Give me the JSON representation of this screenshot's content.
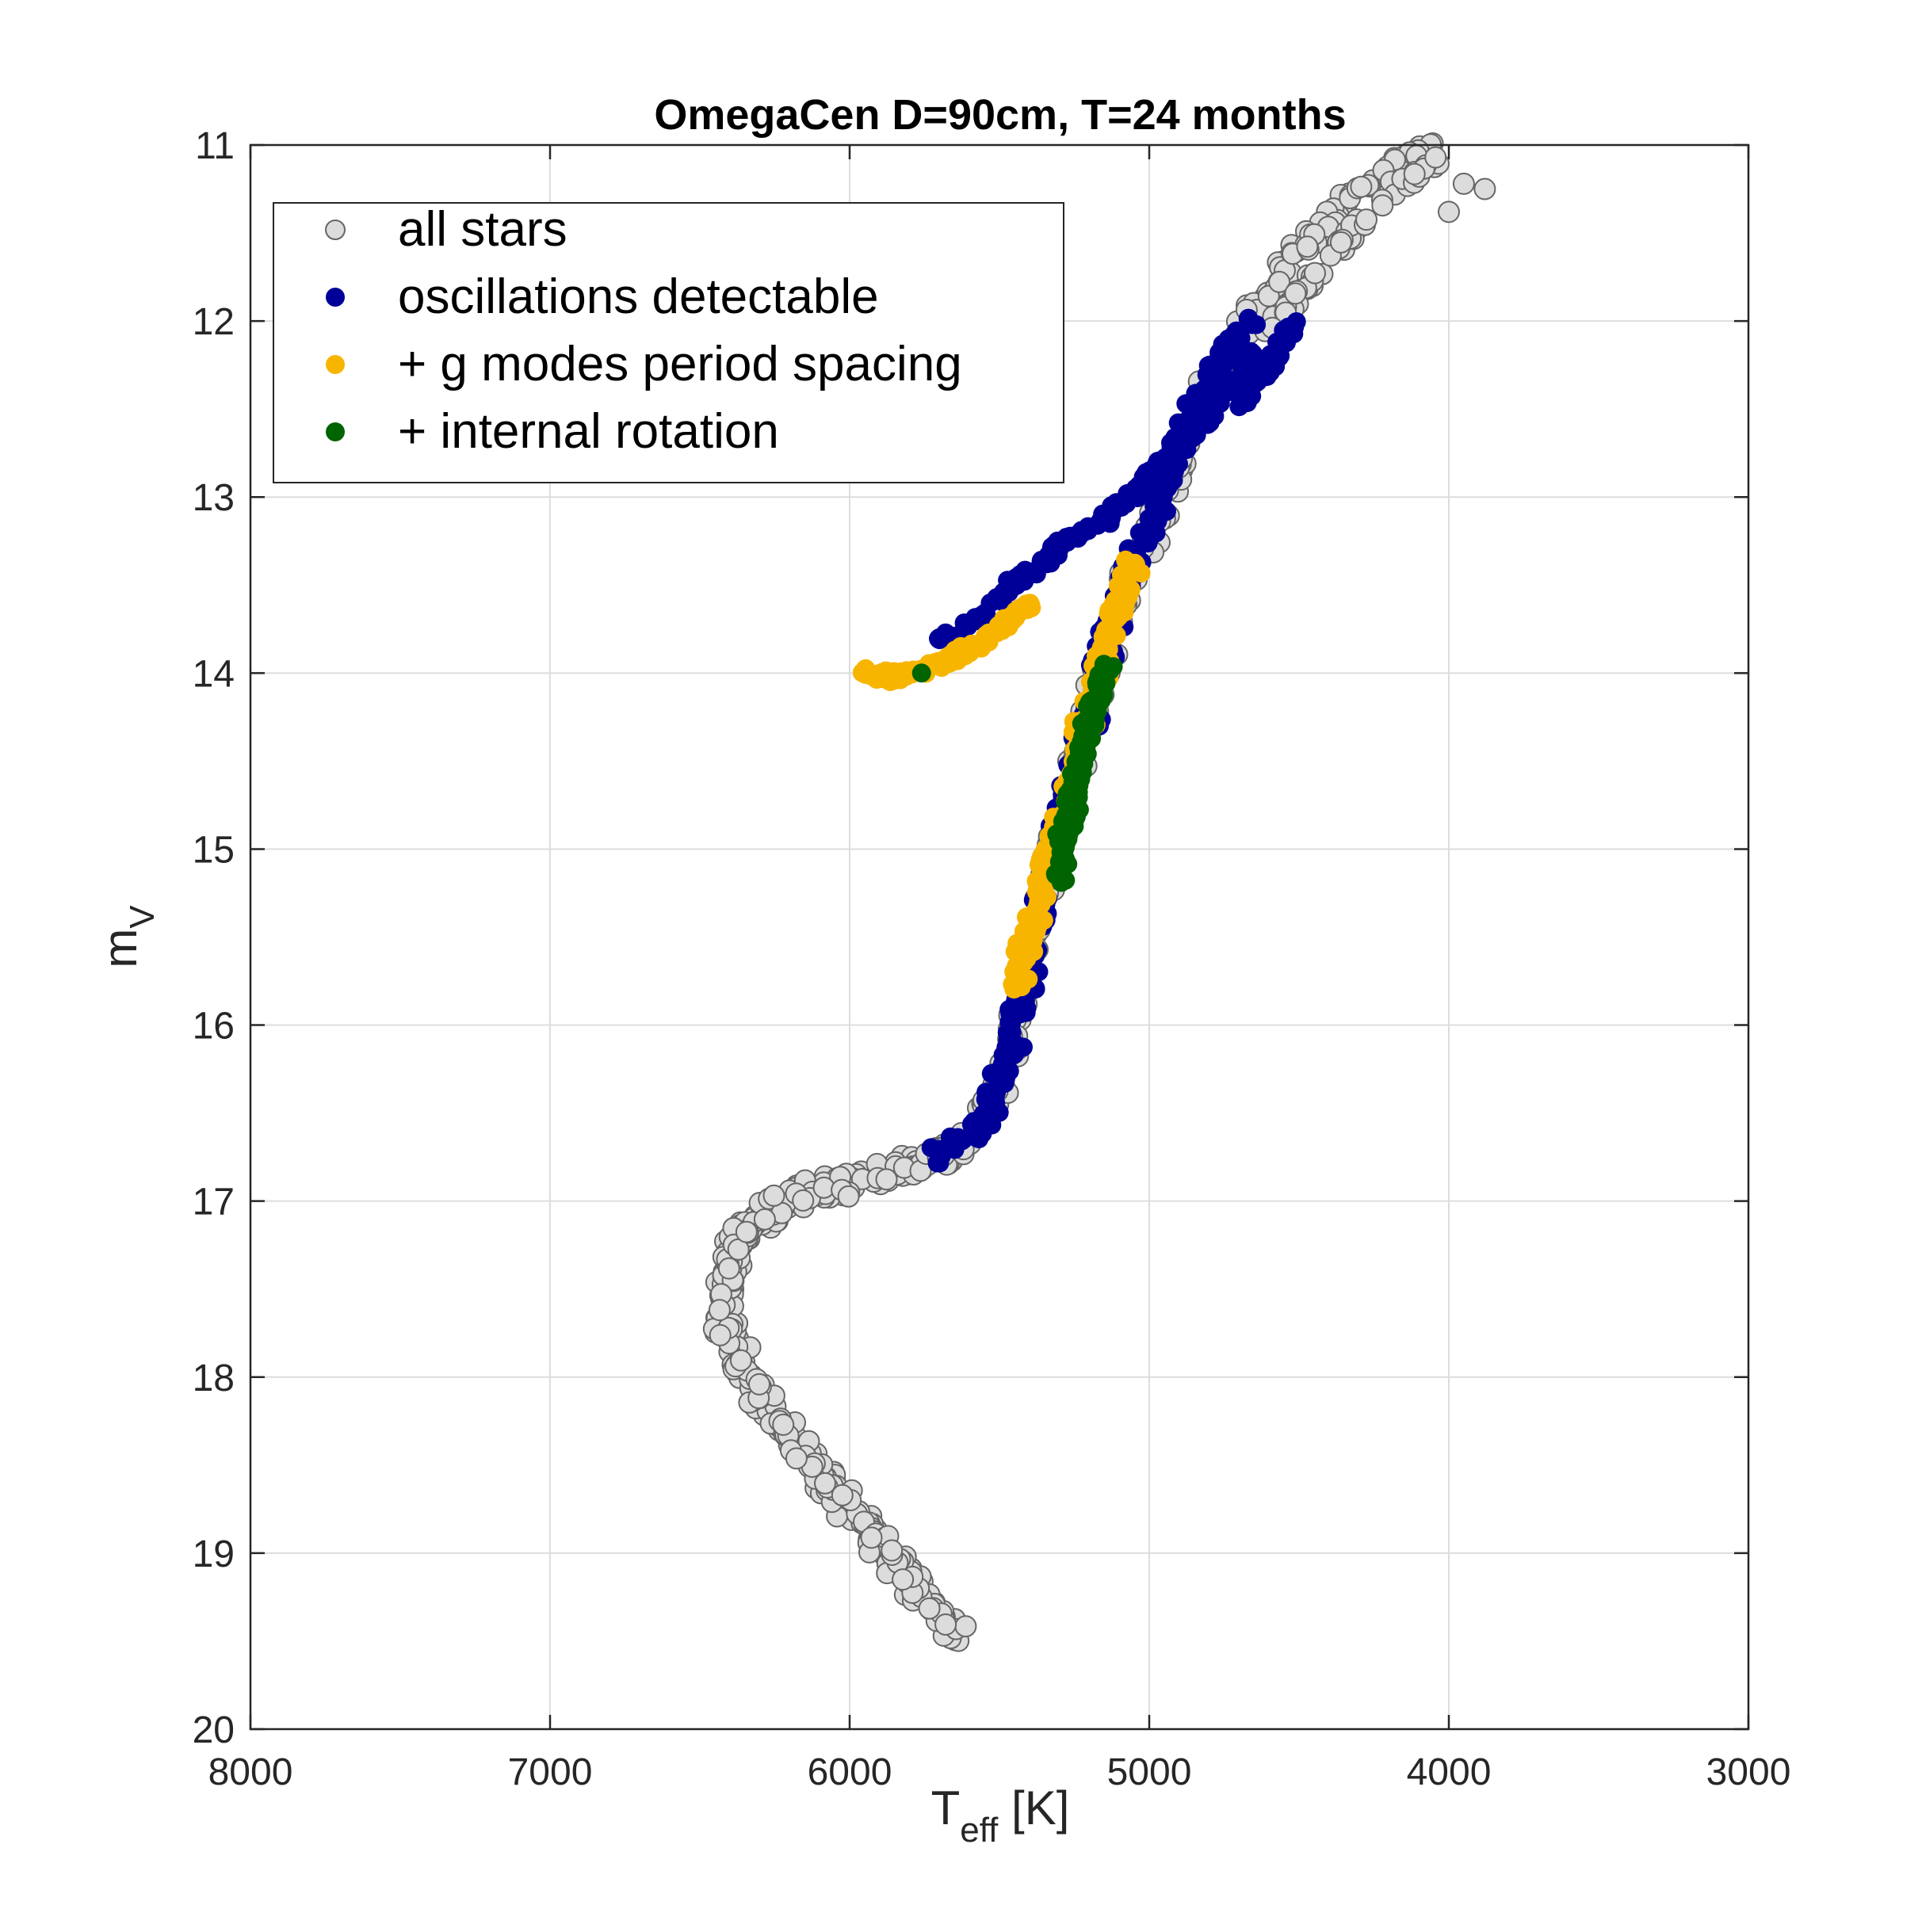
{
  "chart_data": {
    "type": "scatter",
    "title": "OmegaCen   D=90cm, T=24 months",
    "xlabel": "T",
    "xlabel_sub": "eff",
    "xlabel_unit": " [K]",
    "ylabel": "m",
    "ylabel_sub": "V",
    "xlim": [
      8000,
      3000
    ],
    "ylim": [
      11,
      20
    ],
    "x_reversed": true,
    "y_reversed": true,
    "xticks": [
      8000,
      7000,
      6000,
      5000,
      4000,
      3000
    ],
    "yticks": [
      11,
      12,
      13,
      14,
      15,
      16,
      17,
      18,
      19,
      20
    ],
    "grid": true,
    "legend_placement": "top-left",
    "series": [
      {
        "name": "all stars",
        "color": "#dcdcdc",
        "edge": "#666666",
        "marker": "open-circle",
        "bands": [
          {
            "path": [
              [
                5620,
                19.48
              ],
              [
                5700,
                19.35
              ],
              [
                5800,
                19.15
              ],
              [
                5900,
                18.95
              ],
              [
                6000,
                18.75
              ],
              [
                6100,
                18.55
              ],
              [
                6200,
                18.33
              ],
              [
                6300,
                18.1
              ],
              [
                6380,
                17.85
              ],
              [
                6420,
                17.6
              ],
              [
                6410,
                17.38
              ],
              [
                6370,
                17.22
              ],
              [
                6300,
                17.1
              ],
              [
                6200,
                17.0
              ],
              [
                6100,
                16.94
              ],
              [
                6000,
                16.89
              ],
              [
                5900,
                16.86
              ],
              [
                5800,
                16.81
              ],
              [
                5700,
                16.74
              ],
              [
                5620,
                16.68
              ]
            ],
            "width": 45,
            "n": 440
          },
          {
            "path": [
              [
                5720,
                16.75
              ],
              [
                5600,
                16.62
              ],
              [
                5520,
                16.42
              ],
              [
                5460,
                16.1
              ],
              [
                5420,
                15.8
              ],
              [
                5380,
                15.4
              ],
              [
                5320,
                15.0
              ],
              [
                5260,
                14.6
              ],
              [
                5200,
                14.2
              ],
              [
                5140,
                13.8
              ],
              [
                5060,
                13.45
              ],
              [
                4970,
                13.1
              ],
              [
                4900,
                12.8
              ],
              [
                4840,
                12.5
              ],
              [
                4760,
                12.2
              ],
              [
                4680,
                12.0
              ],
              [
                4600,
                11.8
              ],
              [
                4480,
                11.55
              ],
              [
                4380,
                11.4
              ],
              [
                4250,
                11.2
              ],
              [
                4120,
                11.05
              ],
              [
                4010,
                11.0
              ]
            ],
            "width": 40,
            "n": 300
          },
          {
            "path": [
              [
                4620,
                12.1
              ],
              [
                4500,
                11.85
              ],
              [
                4400,
                11.65
              ],
              [
                4300,
                11.45
              ],
              [
                4200,
                11.3
              ],
              [
                4100,
                11.15
              ],
              [
                4000,
                11.05
              ]
            ],
            "width": 25,
            "n": 60
          }
        ],
        "scatter_points": [
          [
            4000,
            11.38
          ],
          [
            3950,
            11.22
          ],
          [
            3880,
            11.25
          ]
        ]
      },
      {
        "name": "oscillations detectable",
        "color": "#000099",
        "marker": "filled-circle",
        "bands": [
          {
            "path": [
              [
                5720,
                16.75
              ],
              [
                5600,
                16.65
              ],
              [
                5520,
                16.45
              ],
              [
                5470,
                16.2
              ],
              [
                5440,
                15.95
              ],
              [
                5410,
                15.7
              ],
              [
                5370,
                15.4
              ],
              [
                5320,
                15.0
              ],
              [
                5260,
                14.6
              ],
              [
                5200,
                14.2
              ],
              [
                5140,
                13.8
              ],
              [
                5070,
                13.45
              ],
              [
                4990,
                13.15
              ],
              [
                4930,
                12.85
              ],
              [
                4870,
                12.6
              ],
              [
                4800,
                12.35
              ],
              [
                4720,
                12.1
              ],
              [
                4650,
                12.0
              ]
            ],
            "width": 42,
            "n": 380
          },
          {
            "path": [
              [
                4700,
                12.5
              ],
              [
                4620,
                12.28
              ],
              [
                4550,
                12.1
              ],
              [
                4500,
                12.0
              ]
            ],
            "width": 28,
            "n": 40
          },
          {
            "path": [
              [
                5470,
                13.5
              ],
              [
                5370,
                13.4
              ],
              [
                5300,
                13.28
              ],
              [
                5200,
                13.18
              ],
              [
                5100,
                13.05
              ],
              [
                5000,
                12.9
              ],
              [
                4920,
                12.75
              ],
              [
                4830,
                12.6
              ],
              [
                4760,
                12.45
              ],
              [
                4700,
                12.28
              ],
              [
                4650,
                12.15
              ]
            ],
            "width": 28,
            "n": 170
          },
          {
            "path": [
              [
                5700,
                13.82
              ],
              [
                5600,
                13.72
              ],
              [
                5500,
                13.58
              ],
              [
                5460,
                13.52
              ]
            ],
            "width": 18,
            "n": 30
          }
        ]
      },
      {
        "name": "+ g modes period spacing",
        "color": "#f7b500",
        "marker": "filled-circle",
        "bands": [
          {
            "path": [
              [
                5440,
                15.8
              ],
              [
                5410,
                15.55
              ],
              [
                5370,
                15.3
              ],
              [
                5320,
                15.0
              ],
              [
                5260,
                14.6
              ],
              [
                5200,
                14.2
              ],
              [
                5150,
                13.9
              ],
              [
                5100,
                13.6
              ],
              [
                5050,
                13.35
              ]
            ],
            "width": 34,
            "n": 250
          },
          {
            "path": [
              [
                5960,
                14.0
              ],
              [
                5880,
                14.02
              ],
              [
                5780,
                14.0
              ],
              [
                5700,
                13.95
              ],
              [
                5620,
                13.88
              ],
              [
                5540,
                13.8
              ],
              [
                5460,
                13.7
              ],
              [
                5390,
                13.6
              ]
            ],
            "width": 20,
            "n": 140
          }
        ]
      },
      {
        "name": "+ internal rotation",
        "color": "#006400",
        "marker": "filled-circle",
        "bands": [
          {
            "path": [
              [
                5310,
                15.2
              ],
              [
                5280,
                14.9
              ],
              [
                5240,
                14.6
              ],
              [
                5210,
                14.35
              ],
              [
                5170,
                14.1
              ],
              [
                5140,
                13.95
              ]
            ],
            "width": 26,
            "n": 160
          }
        ],
        "scatter_points": [
          [
            5760,
            14.0
          ]
        ]
      }
    ]
  }
}
